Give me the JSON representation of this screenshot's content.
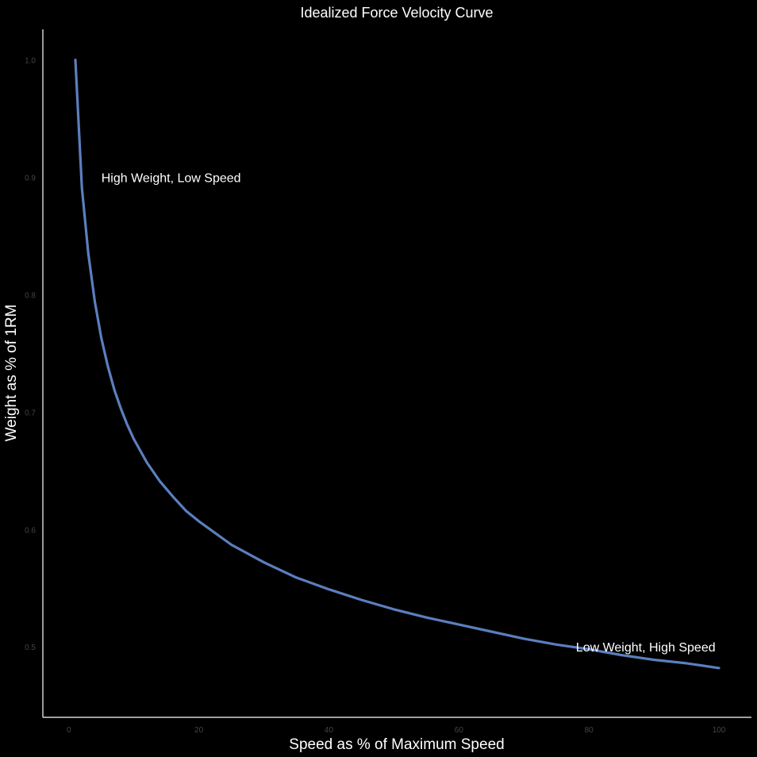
{
  "chart_data": {
    "type": "line",
    "title": "Idealized Force Velocity Curve",
    "xlabel": "Speed as % of Maximum Speed",
    "ylabel": "Weight as % of 1RM",
    "xlim": [
      -4,
      105
    ],
    "ylim": [
      0.44,
      1.026
    ],
    "x_ticks": [
      0,
      20,
      40,
      60,
      80,
      100
    ],
    "x_tick_labels": [
      "0",
      "20",
      "40",
      "60",
      "80",
      "100"
    ],
    "y_ticks": [
      0.5,
      0.6,
      0.7,
      0.8,
      0.9,
      1.0
    ],
    "y_tick_labels": [
      "0.5",
      "0.6",
      "0.7",
      "0.8",
      "0.9",
      "1.0"
    ],
    "grid": false,
    "series": [
      {
        "color": "#5b7fbf",
        "x": [
          1,
          2,
          3,
          4,
          5,
          6,
          7,
          8,
          9,
          10,
          12,
          14,
          16,
          18,
          20,
          25,
          30,
          35,
          40,
          45,
          50,
          55,
          60,
          65,
          70,
          75,
          80,
          85,
          90,
          95,
          100
        ],
        "y": [
          1.0,
          0.891,
          0.835,
          0.794,
          0.763,
          0.739,
          0.719,
          0.703,
          0.689,
          0.677,
          0.657,
          0.641,
          0.628,
          0.616,
          0.607,
          0.587,
          0.572,
          0.559,
          0.549,
          0.54,
          0.532,
          0.525,
          0.519,
          0.513,
          0.507,
          0.502,
          0.498,
          0.493,
          0.489,
          0.486,
          0.482
        ]
      }
    ],
    "annotations": [
      {
        "text": "High Weight, Low Speed",
        "x": 5,
        "y": 0.9
      },
      {
        "text": "Low Weight, High Speed",
        "x": 78,
        "y": 0.5
      }
    ]
  }
}
